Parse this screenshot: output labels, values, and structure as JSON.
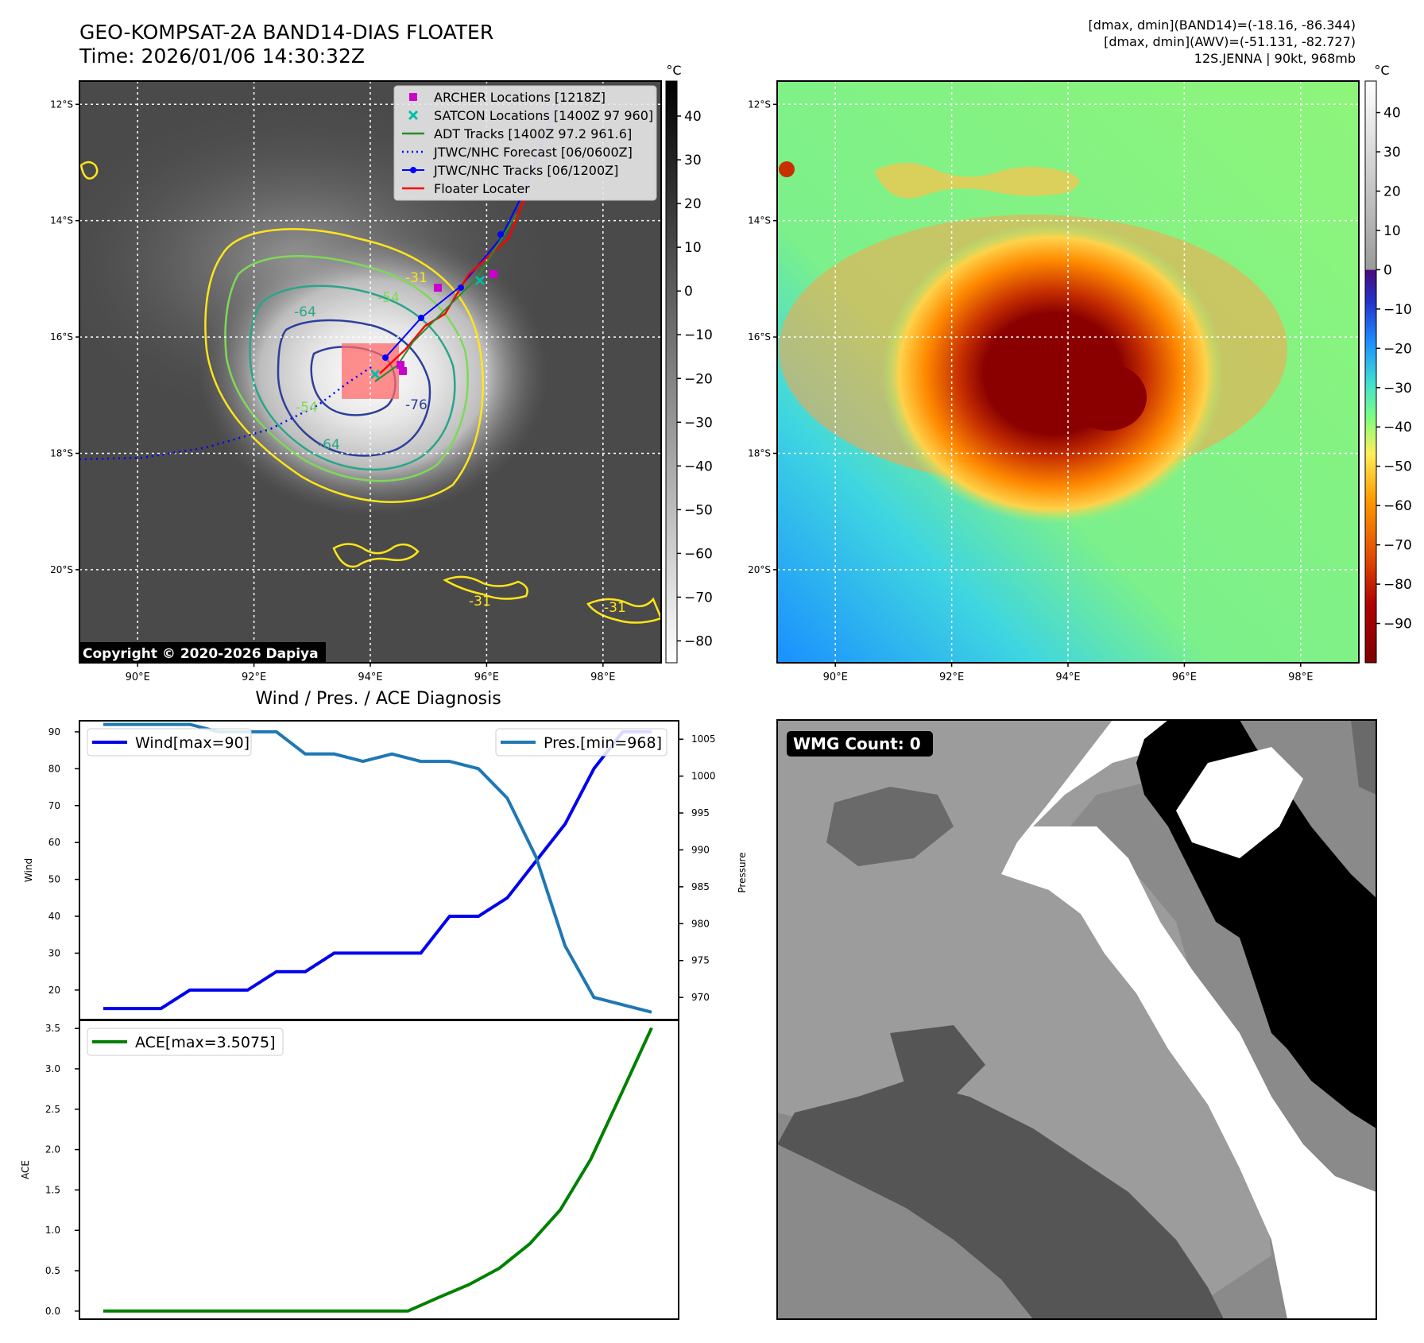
{
  "header": {
    "title_line1": "GEO-KOMPSAT-2A BAND14-DIAS FLOATER",
    "title_line2": "Time: 2026/01/06 14:30:32Z",
    "info_line1": "[dmax, dmin](BAND14)=(-18.16, -86.344)",
    "info_line2": "[dmax, dmin](AWV)=(-51.131, -82.727)",
    "info_line3": "12S.JENNA | 90kt, 968mb"
  },
  "colors": {
    "wind": "#0000ee",
    "pressure": "#1f77b4",
    "ace": "#008000",
    "archer": "#cc00cc",
    "satcon": "#00bbaa",
    "adt": "#2a8a2a",
    "forecast": "#0000ff",
    "tracks": "#0000ff",
    "floater": "#ff0000",
    "contour_yellow": "#ffe51a",
    "contour_green": "#7ed957",
    "contour_teal": "#2aa58a",
    "contour_blue": "#2e3f9a"
  },
  "map_axes": {
    "lat_labels": [
      "12°S",
      "14°S",
      "16°S",
      "18°S",
      "20°S"
    ],
    "lon_labels": [
      "90°E",
      "92°E",
      "94°E",
      "96°E",
      "98°E"
    ],
    "lat_values": [
      -12,
      -14,
      -16,
      -18,
      -20
    ],
    "lon_values": [
      90,
      92,
      94,
      96,
      98
    ],
    "lat_range": [
      -21.6,
      -11.6
    ],
    "lon_range": [
      89.0,
      99.0
    ]
  },
  "ir_panel": {
    "colorbar_unit": "°C",
    "colorbar_ticks": [
      "40",
      "30",
      "20",
      "10",
      "0",
      "−10",
      "−20",
      "−30",
      "−40",
      "−50",
      "−60",
      "−70",
      "−80"
    ],
    "colorbar_values": [
      40,
      30,
      20,
      10,
      0,
      -10,
      -20,
      -30,
      -40,
      -50,
      -60,
      -70,
      -80
    ],
    "colorbar_range": [
      -85,
      48
    ],
    "copyright": "Copyright © 2020-2026 Dapiya",
    "contour_labels": [
      "-31",
      "-54",
      "-64",
      "-76",
      "-64",
      "-54",
      "-31",
      "-31"
    ],
    "legend": [
      {
        "label": "ARCHER Locations [1218Z]",
        "kind": "archer"
      },
      {
        "label": "SATCON Locations [1400Z 97 960]",
        "kind": "satcon"
      },
      {
        "label": "ADT Tracks [1400Z 97.2 961.6]",
        "kind": "adt"
      },
      {
        "label": "JTWC/NHC Forecast [06/0600Z]",
        "kind": "forecast"
      },
      {
        "label": "JTWC/NHC Tracks [06/1200Z]",
        "kind": "tracks"
      },
      {
        "label": "Floater Locater",
        "kind": "floater"
      }
    ]
  },
  "wv_panel": {
    "colorbar_unit": "°C",
    "colorbar_ticks": [
      "40",
      "30",
      "20",
      "10",
      "0",
      "−10",
      "−20",
      "−30",
      "−40",
      "−50",
      "−60",
      "−70",
      "−80",
      "−90"
    ],
    "colorbar_values": [
      40,
      30,
      20,
      10,
      0,
      -10,
      -20,
      -30,
      -40,
      -50,
      -60,
      -70,
      -80,
      -90
    ],
    "colorbar_range": [
      -100,
      48
    ]
  },
  "wmg_panel": {
    "badge": "WMG Count: 0"
  },
  "chart_data": [
    {
      "type": "line",
      "title": "Wind / Pres. / ACE Diagnosis",
      "ylabel": "Wind",
      "y2label": "Pressure",
      "ylim": [
        12,
        93
      ],
      "y2lim": [
        967,
        1007.5
      ],
      "yticks": [
        20,
        30,
        40,
        50,
        60,
        70,
        80,
        90
      ],
      "y2ticks": [
        970,
        975,
        980,
        985,
        990,
        995,
        1000,
        1005
      ],
      "series": [
        {
          "name": "Wind[max=90]",
          "axis": "left",
          "values": [
            15,
            15,
            15,
            20,
            20,
            20,
            25,
            25,
            30,
            30,
            30,
            30,
            40,
            40,
            45,
            55,
            65,
            80,
            90,
            90
          ]
        },
        {
          "name": "Pres.[min=968]",
          "axis": "right",
          "values": [
            1007,
            1007,
            1007,
            1007,
            1006,
            1006,
            1006,
            1003,
            1003,
            1002,
            1003,
            1002,
            1002,
            1001,
            997,
            989,
            977,
            970,
            969,
            968
          ]
        }
      ]
    },
    {
      "type": "line",
      "ylabel": "ACE",
      "ylim": [
        -0.1,
        3.6
      ],
      "yticks": [
        "0.0",
        "0.5",
        "1.0",
        "1.5",
        "2.0",
        "2.5",
        "3.0",
        "3.5"
      ],
      "series": [
        {
          "name": "ACE[max=3.5075]",
          "values": [
            0,
            0,
            0,
            0,
            0,
            0,
            0,
            0,
            0,
            0,
            0,
            0.1675,
            0.3275,
            0.53,
            0.8325,
            1.2525,
            1.8775,
            2.6875,
            3.5075
          ]
        }
      ]
    }
  ]
}
